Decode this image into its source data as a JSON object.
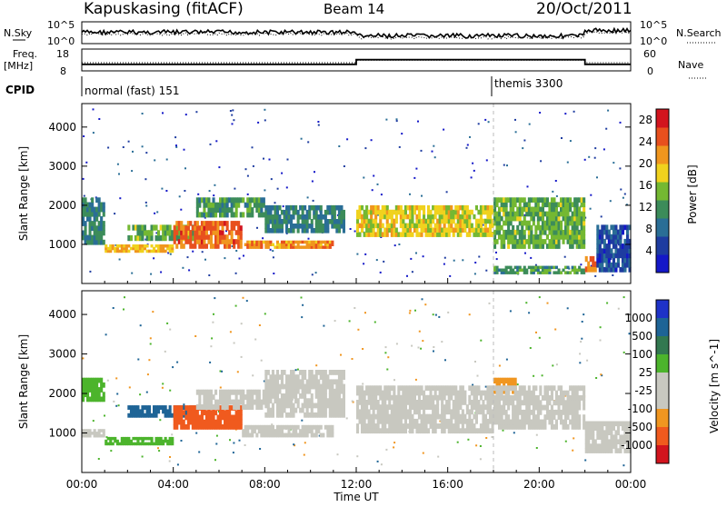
{
  "header": {
    "station": "Kapuskasing (fitACF)",
    "beam": "Beam 14",
    "date": "20/Oct/2011"
  },
  "noise_panel": {
    "left_label": "N.Sky",
    "right_label": "N.Search",
    "left_ticks": [
      "10^5",
      "10^0"
    ],
    "right_ticks": [
      "10^5",
      "10^0"
    ]
  },
  "freq_panel": {
    "left_label_line1": "Freq.",
    "left_label_line2": "[MHz]",
    "left_ticks": [
      "18",
      "8"
    ],
    "right_label": "Nave",
    "right_ticks": [
      "60",
      "0"
    ]
  },
  "cpid_panel": {
    "label": "CPID",
    "modes": [
      {
        "name": "normal (fast) 151",
        "start_hour": 0
      },
      {
        "name": "themis 3300",
        "start_hour": 18
      }
    ]
  },
  "x_axis": {
    "title": "Time UT",
    "ticks": [
      "00:00",
      "04:00",
      "08:00",
      "12:00",
      "16:00",
      "20:00",
      "00:00"
    ]
  },
  "colors": {
    "power_scale": [
      "#1418c8",
      "#1e3ca0",
      "#2a6e96",
      "#3c8c5a",
      "#74b832",
      "#f0d21e",
      "#f0961e",
      "#e8501e",
      "#d2141e"
    ],
    "velocity_scale": [
      "#1e32c8",
      "#1e6496",
      "#327850",
      "#4cb42c",
      "#c8c8c0",
      "#c8c8c0",
      "#f09620",
      "#f05a1e",
      "#d2141e"
    ],
    "ground_scatter": "#c8c8c0"
  },
  "chart_data": [
    {
      "type": "heatmap",
      "panel": "power",
      "ylabel": "Slant Range [km]",
      "yticks": [
        1000,
        2000,
        3000,
        4000
      ],
      "ylim": [
        0,
        4600
      ],
      "xlim_hours": [
        0,
        24
      ],
      "colorbar": {
        "label": "Power [dB]",
        "ticks": [
          4,
          8,
          12,
          16,
          20,
          24,
          28
        ],
        "range": [
          0,
          30
        ]
      },
      "bands": [
        {
          "t0": 0.0,
          "t1": 1.0,
          "r0": 1000,
          "r1": 2200,
          "level": 10
        },
        {
          "t0": 1.0,
          "t1": 4.0,
          "r0": 800,
          "r1": 1000,
          "level": 20
        },
        {
          "t0": 2.0,
          "t1": 5.0,
          "r0": 1100,
          "r1": 1500,
          "level": 14
        },
        {
          "t0": 4.0,
          "t1": 7.0,
          "r0": 900,
          "r1": 1600,
          "level": 24
        },
        {
          "t0": 5.0,
          "t1": 8.0,
          "r0": 1700,
          "r1": 2200,
          "level": 12
        },
        {
          "t0": 7.0,
          "t1": 11.0,
          "r0": 900,
          "r1": 1100,
          "level": 22
        },
        {
          "t0": 8.0,
          "t1": 11.5,
          "r0": 1300,
          "r1": 2000,
          "level": 10
        },
        {
          "t0": 12.0,
          "t1": 18.0,
          "r0": 1200,
          "r1": 2000,
          "level": 18
        },
        {
          "t0": 18.0,
          "t1": 22.0,
          "r0": 900,
          "r1": 2200,
          "level": 14
        },
        {
          "t0": 18.0,
          "t1": 22.0,
          "r0": 250,
          "r1": 450,
          "level": 12
        },
        {
          "t0": 22.0,
          "t1": 22.5,
          "r0": 300,
          "r1": 700,
          "level": 24
        },
        {
          "t0": 22.5,
          "t1": 24.0,
          "r0": 300,
          "r1": 1500,
          "level": 6
        }
      ]
    },
    {
      "type": "heatmap",
      "panel": "velocity",
      "ylabel": "Slant Range [km]",
      "yticks": [
        1000,
        2000,
        3000,
        4000
      ],
      "ylim": [
        0,
        4600
      ],
      "xlim_hours": [
        0,
        24
      ],
      "colorbar": {
        "label": "Velocity [m s^-1]",
        "ticks": [
          1000,
          500,
          100,
          25,
          -25,
          -100,
          -500,
          -1000
        ]
      },
      "bands": [
        {
          "t0": 0.0,
          "t1": 1.0,
          "r0": 900,
          "r1": 1100,
          "level": 0
        },
        {
          "t0": 0.0,
          "t1": 1.0,
          "r0": 1800,
          "r1": 2400,
          "level": 150
        },
        {
          "t0": 1.0,
          "t1": 4.0,
          "r0": 700,
          "r1": 900,
          "level": 100
        },
        {
          "t0": 2.0,
          "t1": 5.0,
          "r0": 1400,
          "r1": 1700,
          "level": 400
        },
        {
          "t0": 4.0,
          "t1": 7.0,
          "r0": 1100,
          "r1": 1700,
          "level": -300
        },
        {
          "t0": 5.0,
          "t1": 8.0,
          "r0": 1600,
          "r1": 2100,
          "level": 0
        },
        {
          "t0": 7.0,
          "t1": 11.0,
          "r0": 900,
          "r1": 1200,
          "level": 0
        },
        {
          "t0": 8.0,
          "t1": 11.5,
          "r0": 1400,
          "r1": 2600,
          "level": 0
        },
        {
          "t0": 12.0,
          "t1": 18.0,
          "r0": 1000,
          "r1": 2200,
          "level": 0
        },
        {
          "t0": 18.0,
          "t1": 19.0,
          "r0": 2000,
          "r1": 2400,
          "level": -200
        },
        {
          "t0": 18.0,
          "t1": 22.0,
          "r0": 1100,
          "r1": 2200,
          "level": 0
        },
        {
          "t0": 22.0,
          "t1": 24.0,
          "r0": 500,
          "r1": 1300,
          "level": 0
        }
      ]
    }
  ]
}
